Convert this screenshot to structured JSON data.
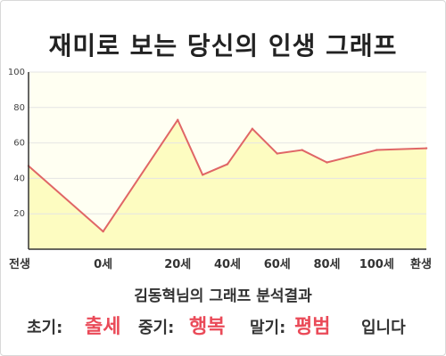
{
  "title": "재미로 보는 당신의 인생 그래프",
  "chart_data": {
    "type": "area",
    "title": "재미로 보는 당신의 인생 그래프",
    "ylim": [
      0,
      100
    ],
    "yticks": [
      20,
      40,
      60,
      80,
      100
    ],
    "x_categories": [
      "전생",
      "0세",
      "20세",
      "40세",
      "60세",
      "80세",
      "100세",
      "환생"
    ],
    "x_category_positions": [
      0,
      3,
      6,
      8,
      10,
      12,
      14,
      16
    ],
    "series": [
      {
        "values": [
          {
            "x": 0,
            "y": 47
          },
          {
            "x": 3,
            "y": 10
          },
          {
            "x": 6,
            "y": 73
          },
          {
            "x": 7,
            "y": 42
          },
          {
            "x": 8,
            "y": 48
          },
          {
            "x": 9,
            "y": 68
          },
          {
            "x": 10,
            "y": 54
          },
          {
            "x": 11,
            "y": 56
          },
          {
            "x": 12,
            "y": 49
          },
          {
            "x": 14,
            "y": 56
          },
          {
            "x": 16,
            "y": 57
          }
        ]
      }
    ],
    "grid": true,
    "colors": {
      "line": "#e06666",
      "fill": "#fdfcc1",
      "plot_bg": "#fffff2",
      "grid": "#e4e4e4",
      "axis": "#333333"
    }
  },
  "footer": {
    "name": "김동혁님의 그래프 분석결과",
    "early_label": "초기:",
    "early_value": "출세",
    "middle_label": "중기:",
    "middle_value": "행복",
    "late_label": "말기:",
    "late_value": "평범",
    "ending": "입니다"
  }
}
